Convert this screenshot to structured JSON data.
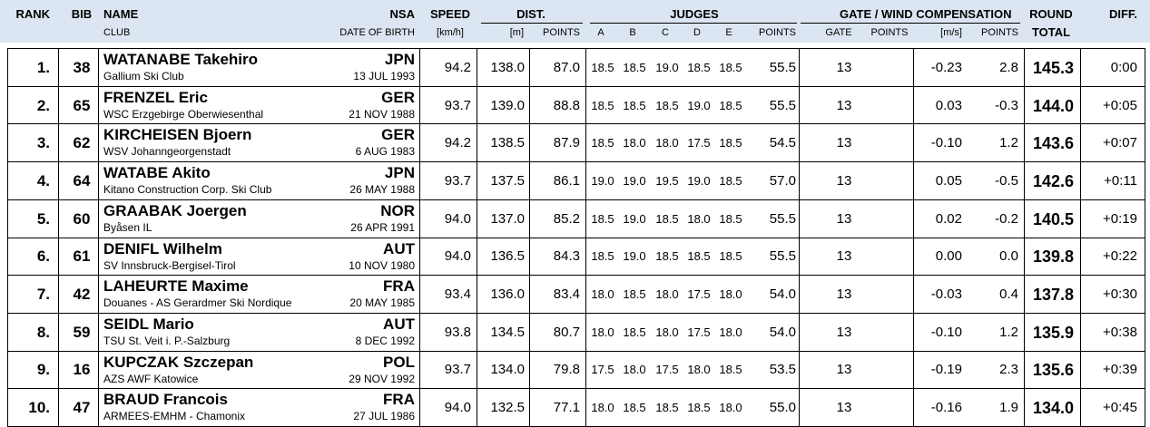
{
  "header": {
    "rank": "RANK",
    "bib": "BIB",
    "name": "NAME",
    "club": "CLUB",
    "nsa": "NSA",
    "dob": "DATE OF BIRTH",
    "speed": "SPEED",
    "speed_unit": "[km/h]",
    "dist": "DIST.",
    "dist_unit": "[m]",
    "dist_points": "POINTS",
    "judges": "JUDGES",
    "judge_letters": [
      "A",
      "B",
      "C",
      "D",
      "E"
    ],
    "judge_points": "POINTS",
    "comp": "GATE / WIND COMPENSATION",
    "gate": "GATE",
    "gate_points": "POINTS",
    "wind_unit": "[m/s]",
    "wind_points": "POINTS",
    "round": "ROUND",
    "total": "TOTAL",
    "diff": "DIFF."
  },
  "rows": [
    {
      "rank": "1.",
      "bib": "38",
      "name": "WATANABE Takehiro",
      "club": "Gallium Ski Club",
      "nsa": "JPN",
      "dob": "13 JUL 1993",
      "speed": "94.2",
      "dist": "138.0",
      "dist_points": "87.0",
      "judges": [
        "18.5",
        "18.5",
        "19.0",
        "18.5",
        "18.5"
      ],
      "judge_points": "55.5",
      "gate": "13",
      "wind": "-0.23",
      "wind_points": "2.8",
      "total": "145.3",
      "diff": "0:00"
    },
    {
      "rank": "2.",
      "bib": "65",
      "name": "FRENZEL Eric",
      "club": "WSC Erzgebirge Oberwiesenthal",
      "nsa": "GER",
      "dob": "21 NOV 1988",
      "speed": "93.7",
      "dist": "139.0",
      "dist_points": "88.8",
      "judges": [
        "18.5",
        "18.5",
        "18.5",
        "19.0",
        "18.5"
      ],
      "judge_points": "55.5",
      "gate": "13",
      "wind": "0.03",
      "wind_points": "-0.3",
      "total": "144.0",
      "diff": "+0:05"
    },
    {
      "rank": "3.",
      "bib": "62",
      "name": "KIRCHEISEN Bjoern",
      "club": "WSV Johanngeorgenstadt",
      "nsa": "GER",
      "dob": "6 AUG 1983",
      "speed": "94.2",
      "dist": "138.5",
      "dist_points": "87.9",
      "judges": [
        "18.5",
        "18.0",
        "18.0",
        "17.5",
        "18.5"
      ],
      "judge_points": "54.5",
      "gate": "13",
      "wind": "-0.10",
      "wind_points": "1.2",
      "total": "143.6",
      "diff": "+0:07"
    },
    {
      "rank": "4.",
      "bib": "64",
      "name": "WATABE Akito",
      "club": "Kitano Construction Corp. Ski Club",
      "nsa": "JPN",
      "dob": "26 MAY 1988",
      "speed": "93.7",
      "dist": "137.5",
      "dist_points": "86.1",
      "judges": [
        "19.0",
        "19.0",
        "19.5",
        "19.0",
        "18.5"
      ],
      "judge_points": "57.0",
      "gate": "13",
      "wind": "0.05",
      "wind_points": "-0.5",
      "total": "142.6",
      "diff": "+0:11"
    },
    {
      "rank": "5.",
      "bib": "60",
      "name": "GRAABAK Joergen",
      "club": "Byåsen IL",
      "nsa": "NOR",
      "dob": "26 APR 1991",
      "speed": "94.0",
      "dist": "137.0",
      "dist_points": "85.2",
      "judges": [
        "18.5",
        "19.0",
        "18.5",
        "18.0",
        "18.5"
      ],
      "judge_points": "55.5",
      "gate": "13",
      "wind": "0.02",
      "wind_points": "-0.2",
      "total": "140.5",
      "diff": "+0:19"
    },
    {
      "rank": "6.",
      "bib": "61",
      "name": "DENIFL Wilhelm",
      "club": "SV Innsbruck-Bergisel-Tirol",
      "nsa": "AUT",
      "dob": "10 NOV 1980",
      "speed": "94.0",
      "dist": "136.5",
      "dist_points": "84.3",
      "judges": [
        "18.5",
        "19.0",
        "18.5",
        "18.5",
        "18.5"
      ],
      "judge_points": "55.5",
      "gate": "13",
      "wind": "0.00",
      "wind_points": "0.0",
      "total": "139.8",
      "diff": "+0:22"
    },
    {
      "rank": "7.",
      "bib": "42",
      "name": "LAHEURTE Maxime",
      "club": "Douanes - AS Gerardmer Ski Nordique",
      "nsa": "FRA",
      "dob": "20 MAY 1985",
      "speed": "93.4",
      "dist": "136.0",
      "dist_points": "83.4",
      "judges": [
        "18.0",
        "18.5",
        "18.0",
        "17.5",
        "18.0"
      ],
      "judge_points": "54.0",
      "gate": "13",
      "wind": "-0.03",
      "wind_points": "0.4",
      "total": "137.8",
      "diff": "+0:30"
    },
    {
      "rank": "8.",
      "bib": "59",
      "name": "SEIDL Mario",
      "club": "TSU St. Veit i. P.-Salzburg",
      "nsa": "AUT",
      "dob": "8 DEC 1992",
      "speed": "93.8",
      "dist": "134.5",
      "dist_points": "80.7",
      "judges": [
        "18.0",
        "18.5",
        "18.0",
        "17.5",
        "18.0"
      ],
      "judge_points": "54.0",
      "gate": "13",
      "wind": "-0.10",
      "wind_points": "1.2",
      "total": "135.9",
      "diff": "+0:38"
    },
    {
      "rank": "9.",
      "bib": "16",
      "name": "KUPCZAK Szczepan",
      "club": "AZS AWF Katowice",
      "nsa": "POL",
      "dob": "29 NOV 1992",
      "speed": "93.7",
      "dist": "134.0",
      "dist_points": "79.8",
      "judges": [
        "17.5",
        "18.0",
        "17.5",
        "18.0",
        "18.5"
      ],
      "judge_points": "53.5",
      "gate": "13",
      "wind": "-0.19",
      "wind_points": "2.3",
      "total": "135.6",
      "diff": "+0:39"
    },
    {
      "rank": "10.",
      "bib": "47",
      "name": "BRAUD Francois",
      "club": "ARMEES-EMHM - Chamonix",
      "nsa": "FRA",
      "dob": "27 JUL 1986",
      "speed": "94.0",
      "dist": "132.5",
      "dist_points": "77.1",
      "judges": [
        "18.0",
        "18.5",
        "18.5",
        "18.5",
        "18.0"
      ],
      "judge_points": "55.0",
      "gate": "13",
      "wind": "-0.16",
      "wind_points": "1.9",
      "total": "134.0",
      "diff": "+0:45"
    }
  ]
}
